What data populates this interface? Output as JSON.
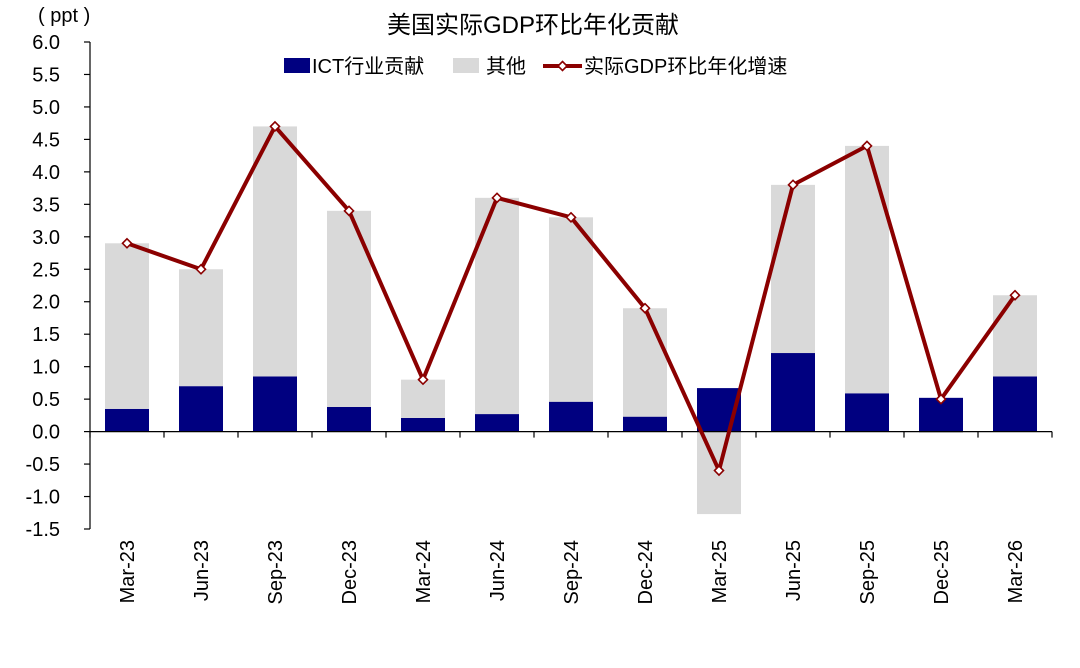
{
  "chart_data": {
    "type": "bar",
    "stacked": true,
    "title": "美国实际GDP环比年化贡献",
    "unit_label": "( ppt )",
    "categories": [
      "Mar-23",
      "Jun-23",
      "Sep-23",
      "Dec-23",
      "Mar-24",
      "Jun-24",
      "Sep-24",
      "Dec-24",
      "Mar-25",
      "Jun-25",
      "Sep-25",
      "Dec-25",
      "Mar-26"
    ],
    "series": [
      {
        "name": "ICT行业贡献",
        "kind": "bar",
        "color": "#000080",
        "values": [
          0.35,
          0.7,
          0.85,
          0.38,
          0.21,
          0.27,
          0.46,
          0.23,
          0.67,
          1.21,
          0.59,
          0.52,
          0.85
        ]
      },
      {
        "name": "其他",
        "kind": "bar",
        "color": "#d9d9d9",
        "values": [
          2.55,
          1.8,
          3.85,
          3.02,
          0.59,
          3.33,
          2.84,
          1.67,
          -1.27,
          2.59,
          3.81,
          -0.02,
          1.25
        ]
      },
      {
        "name": "实际GDP环比年化增速",
        "kind": "line",
        "color": "#8b0000",
        "values": [
          2.9,
          2.5,
          4.7,
          3.4,
          0.8,
          3.6,
          3.3,
          1.9,
          -0.6,
          3.8,
          4.4,
          0.5,
          2.1
        ]
      }
    ],
    "ylim": [
      -1.5,
      6.0
    ],
    "yticks": [
      "6.0",
      "5.5",
      "5.0",
      "4.5",
      "4.0",
      "3.5",
      "3.0",
      "2.5",
      "2.0",
      "1.5",
      "1.0",
      "0.5",
      "0.0",
      "-0.5",
      "-1.0",
      "-1.5"
    ],
    "ytick_values": [
      6.0,
      5.5,
      5.0,
      4.5,
      4.0,
      3.5,
      3.0,
      2.5,
      2.0,
      1.5,
      1.0,
      0.5,
      0.0,
      -0.5,
      -1.0,
      -1.5
    ],
    "negative_tick_color": "#ff0000",
    "legend_position": "top-center",
    "grid": false
  }
}
